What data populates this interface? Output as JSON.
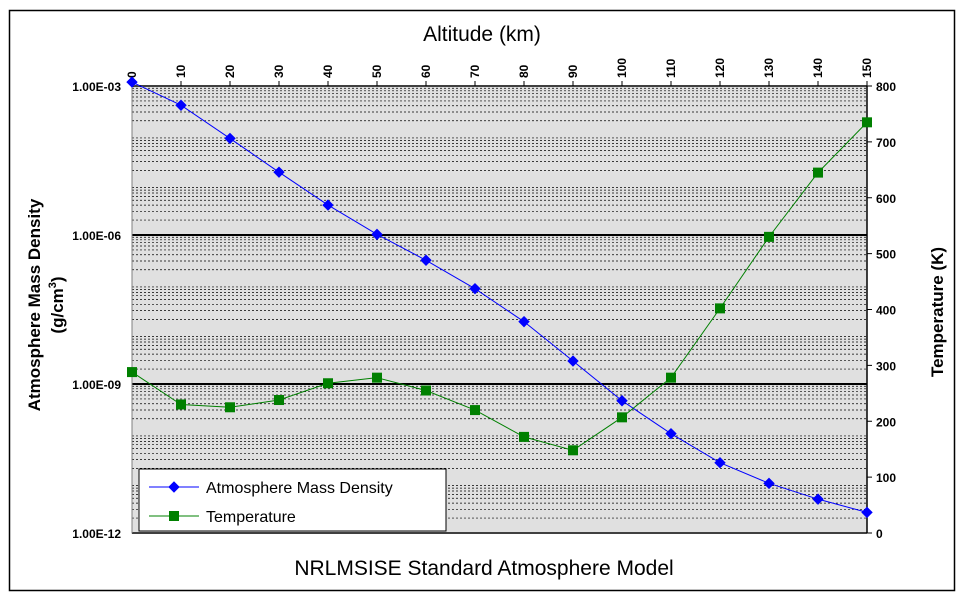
{
  "chart_data": {
    "type": "line",
    "title": "NRLMSISE Standard Atmosphere Model",
    "x_axis": {
      "label": "Altitude (km)",
      "range": [
        0,
        150
      ],
      "ticks": [
        "0",
        "10",
        "20",
        "30",
        "40",
        "50",
        "60",
        "70",
        "80",
        "90",
        "100",
        "110",
        "120",
        "130",
        "140",
        "150"
      ],
      "position": "top"
    },
    "y_left": {
      "label_line1": "Atmosphere Mass Density",
      "label_line2_base": "(g/cm",
      "label_line2_sup": "3",
      "label_line2_end": ")",
      "scale": "log",
      "range": [
        1e-12,
        0.001
      ],
      "ticks": [
        "1.00E-12",
        "1.00E-09",
        "1.00E-06",
        "1.00E-03"
      ]
    },
    "y_right": {
      "label": "Temperature (K)",
      "range": [
        0,
        800
      ],
      "ticks": [
        "0",
        "100",
        "200",
        "300",
        "400",
        "500",
        "600",
        "700",
        "800"
      ]
    },
    "grid": true,
    "legend_position": "bottom-left",
    "series": [
      {
        "name": "Atmosphere Mass Density",
        "axis": "left",
        "color": "#0000ff",
        "marker": "diamond",
        "x": [
          0,
          10,
          20,
          30,
          40,
          50,
          60,
          70,
          80,
          90,
          100,
          110,
          120,
          130,
          140,
          150
        ],
        "y": [
          0.0012,
          0.00041,
          8.8e-05,
          1.84e-05,
          4e-06,
          1.03e-06,
          3.1e-07,
          8.3e-08,
          1.8e-08,
          2.9e-09,
          4.6e-10,
          1e-10,
          2.6e-11,
          1e-11,
          4.8e-12,
          2.6e-12
        ]
      },
      {
        "name": "Temperature",
        "axis": "right",
        "color": "#008000",
        "marker": "square",
        "x": [
          0,
          10,
          20,
          30,
          40,
          50,
          60,
          70,
          80,
          90,
          100,
          110,
          120,
          130,
          140,
          150
        ],
        "y": [
          288,
          230,
          225,
          238,
          268,
          278,
          255,
          220,
          172,
          148,
          207,
          278,
          402,
          530,
          645,
          735
        ]
      }
    ]
  }
}
